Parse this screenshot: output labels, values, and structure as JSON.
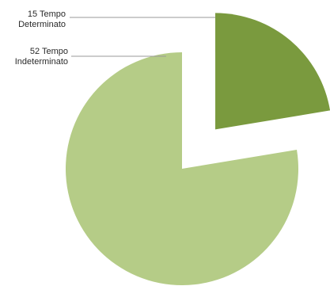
{
  "chart_data": {
    "type": "pie",
    "title": "",
    "exploded_slice": "15 Tempo Determinato",
    "slices": [
      {
        "count": "15",
        "name": "Tempo Determinato",
        "value": 15,
        "color": "#7a9a3e",
        "label_lines": [
          "15 Tempo",
          "Determinato"
        ]
      },
      {
        "count": "52",
        "name": "Tempo Indeterminato",
        "value": 52,
        "color": "#b5cc87",
        "label_lines": [
          "52 Tempo",
          "Indeterminato"
        ]
      }
    ]
  }
}
